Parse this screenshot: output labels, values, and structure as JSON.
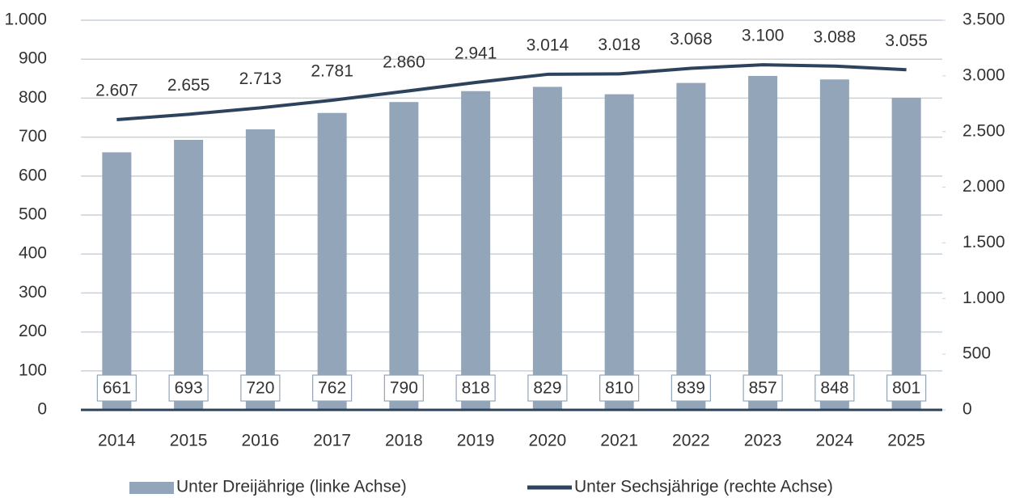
{
  "chart_data": {
    "type": "bar",
    "categories": [
      "2014",
      "2015",
      "2016",
      "2017",
      "2018",
      "2019",
      "2020",
      "2021",
      "2022",
      "2023",
      "2024",
      "2025"
    ],
    "series": [
      {
        "name": "Unter Dreijährige (linke Achse)",
        "color": "#93a5b9",
        "type": "bar",
        "values": [
          661,
          693,
          720,
          762,
          790,
          818,
          829,
          810,
          839,
          857,
          848,
          801
        ]
      },
      {
        "name": "Unter Sechsjährige (rechte Achse)",
        "color": "#2d435d",
        "type": "line",
        "axis": "y2",
        "values": [
          2607,
          2655,
          2713,
          2781,
          2860,
          2941,
          3014,
          3018,
          3068,
          3100,
          3088,
          3055
        ],
        "value_labels": [
          "2.607",
          "2.655",
          "2.713",
          "2.781",
          "2.860",
          "2.941",
          "3.014",
          "3.018",
          "3.068",
          "3.100",
          "3.088",
          "3.055"
        ]
      }
    ],
    "ylim": [
      0,
      1000
    ],
    "yticks": [
      0,
      100,
      200,
      300,
      400,
      500,
      600,
      700,
      800,
      900,
      {
        "value": 1000,
        "label": "1.000"
      }
    ],
    "y2lim": [
      0,
      3500
    ],
    "y2ticks": [
      0,
      500,
      {
        "value": 1000,
        "label": "1.000"
      },
      {
        "value": 1500,
        "label": "1.500"
      },
      {
        "value": 2000,
        "label": "2.000"
      },
      {
        "value": 2500,
        "label": "2.500"
      },
      {
        "value": 3000,
        "label": "3.000"
      },
      {
        "value": 3500,
        "label": "3.500"
      }
    ],
    "grid": true,
    "legend": "bottom"
  }
}
